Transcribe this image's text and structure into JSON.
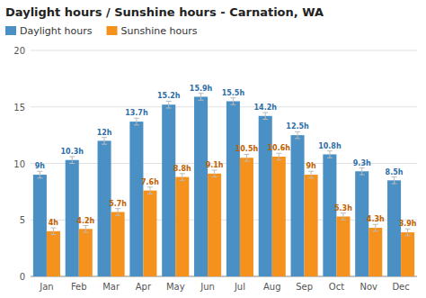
{
  "chart_data": {
    "type": "bar",
    "title": "Daylight hours / Sunshine hours - Carnation, WA",
    "categories": [
      "Jan",
      "Feb",
      "Mar",
      "Apr",
      "May",
      "Jun",
      "Jul",
      "Aug",
      "Sep",
      "Oct",
      "Nov",
      "Dec"
    ],
    "series": [
      {
        "name": "Daylight hours",
        "color": "#4A90C4",
        "values": [
          9.0,
          10.3,
          12.0,
          13.7,
          15.2,
          15.9,
          15.5,
          14.2,
          12.5,
          10.8,
          9.3,
          8.5
        ],
        "value_labels": [
          "9h",
          "10.3h",
          "12h",
          "13.7h",
          "15.2h",
          "15.9h",
          "15.5h",
          "14.2h",
          "12.5h",
          "10.8h",
          "9.3h",
          "8.5h"
        ],
        "errors": [
          0.3,
          0.3,
          0.3,
          0.3,
          0.3,
          0.3,
          0.3,
          0.3,
          0.3,
          0.3,
          0.3,
          0.3
        ]
      },
      {
        "name": "Sunshine hours",
        "color": "#F5921E",
        "values": [
          4.0,
          4.2,
          5.7,
          7.6,
          8.8,
          9.1,
          10.5,
          10.6,
          9.0,
          5.3,
          4.3,
          3.9
        ],
        "value_labels": [
          "4h",
          "4.2h",
          "5.7h",
          "7.6h",
          "8.8h",
          "9.1h",
          "10.5h",
          "10.6h",
          "9h",
          "5.3h",
          "4.3h",
          "3.9h"
        ],
        "errors": [
          0.3,
          0.3,
          0.3,
          0.3,
          0.3,
          0.3,
          0.3,
          0.3,
          0.3,
          0.3,
          0.3,
          0.3
        ]
      }
    ],
    "ylim": [
      0,
      20
    ],
    "yticks": [
      0,
      5,
      10,
      15,
      20
    ],
    "grid": true,
    "legend": "upper left",
    "data_labels": true
  }
}
